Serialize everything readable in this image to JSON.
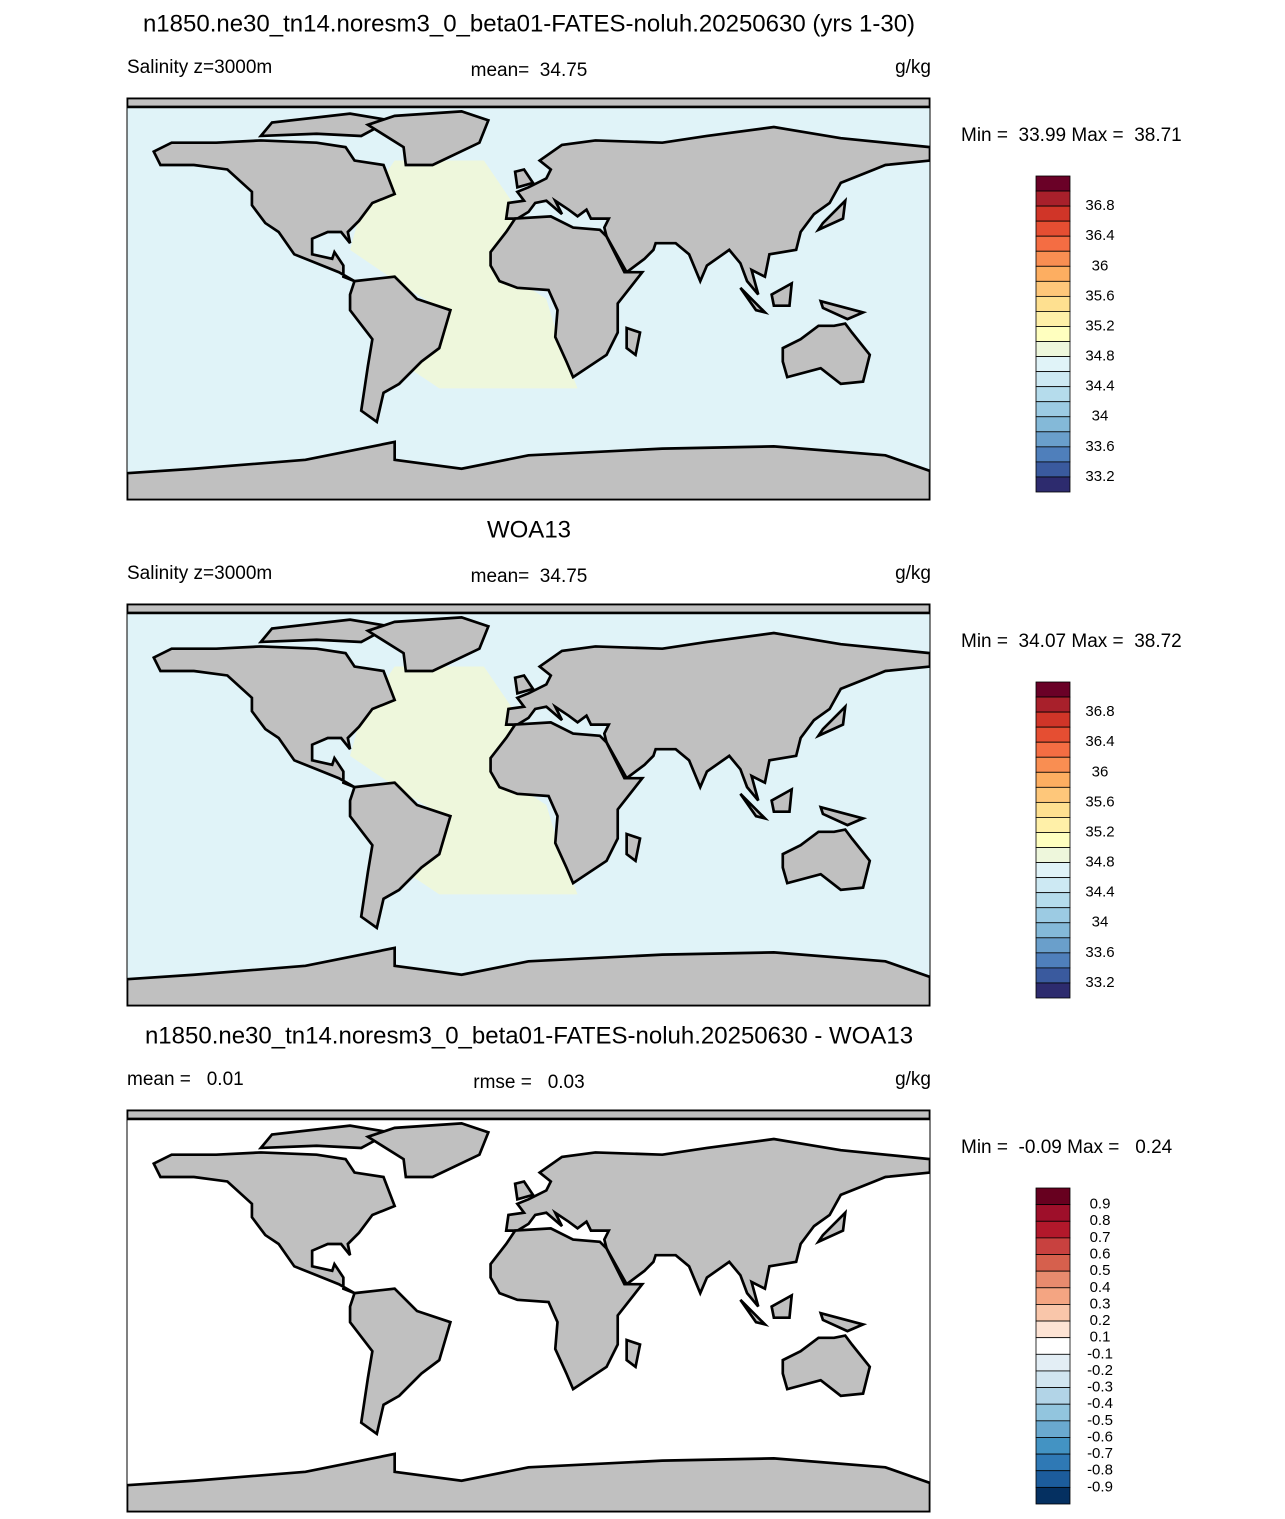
{
  "panels": [
    {
      "title": "n1850.ne30_tn14.noresm3_0_beta01-FATES-noluh.20250630 (yrs 1-30)",
      "left_label": "Salinity z=3000m",
      "center_label": "mean=  34.75",
      "units": "g/kg",
      "minmax": "Min =  33.99 Max =  38.71",
      "map": {
        "ocean_color": "#e0f3f8",
        "atlantic_color": "#eef7dc",
        "land_color": "#c0c0c0"
      },
      "colorbar": {
        "colors": [
          "#6a0127",
          "#a8202b",
          "#d03528",
          "#e54e32",
          "#f46d43",
          "#f98e52",
          "#fdae61",
          "#fec77a",
          "#fee090",
          "#fff0a8",
          "#ffffbf",
          "#eef7dc",
          "#e0f3f8",
          "#cde9f3",
          "#b5dcec",
          "#9ccbe3",
          "#84b9d8",
          "#6a9fcb",
          "#4f7fbb",
          "#3a5a9e",
          "#2d2b6e"
        ],
        "labels": [
          "36.8",
          "36.4",
          "36",
          "35.6",
          "35.2",
          "34.8",
          "34.4",
          "34",
          "33.6",
          "33.2"
        ]
      }
    },
    {
      "title": "WOA13",
      "left_label": "Salinity z=3000m",
      "center_label": "mean=  34.75",
      "units": "g/kg",
      "minmax": "Min =  34.07 Max =  38.72",
      "map": {
        "ocean_color": "#e0f3f8",
        "atlantic_color": "#eef7dc",
        "land_color": "#c0c0c0"
      },
      "colorbar": {
        "colors": [
          "#6a0127",
          "#a8202b",
          "#d03528",
          "#e54e32",
          "#f46d43",
          "#f98e52",
          "#fdae61",
          "#fec77a",
          "#fee090",
          "#fff0a8",
          "#ffffbf",
          "#eef7dc",
          "#e0f3f8",
          "#cde9f3",
          "#b5dcec",
          "#9ccbe3",
          "#84b9d8",
          "#6a9fcb",
          "#4f7fbb",
          "#3a5a9e",
          "#2d2b6e"
        ],
        "labels": [
          "36.8",
          "36.4",
          "36",
          "35.6",
          "35.2",
          "34.8",
          "34.4",
          "34",
          "33.6",
          "33.2"
        ]
      }
    },
    {
      "title": "n1850.ne30_tn14.noresm3_0_beta01-FATES-noluh.20250630 - WOA13",
      "left_label": "mean =   0.01",
      "center_label": "rmse =   0.03",
      "units": "g/kg",
      "minmax": "Min =  -0.09 Max =   0.24",
      "map": {
        "ocean_color": "#ffffff",
        "atlantic_color": "#ffffff",
        "land_color": "#c0c0c0"
      },
      "colorbar": {
        "colors": [
          "#67001f",
          "#9e0f2a",
          "#b2182b",
          "#c8413f",
          "#d6604d",
          "#e88b6e",
          "#f4a582",
          "#f9c6aa",
          "#fde3d4",
          "#ffffff",
          "#e3eef5",
          "#d1e5f0",
          "#b2d4e7",
          "#92c5de",
          "#6aa9cf",
          "#4393c3",
          "#2f79b5",
          "#1c5c9c",
          "#053061"
        ],
        "labels": [
          "0.9",
          "0.8",
          "0.7",
          "0.6",
          "0.5",
          "0.4",
          "0.3",
          "0.2",
          "0.1",
          "-0.1",
          "-0.2",
          "-0.3",
          "-0.4",
          "-0.5",
          "-0.6",
          "-0.7",
          "-0.8",
          "-0.9"
        ]
      }
    }
  ]
}
